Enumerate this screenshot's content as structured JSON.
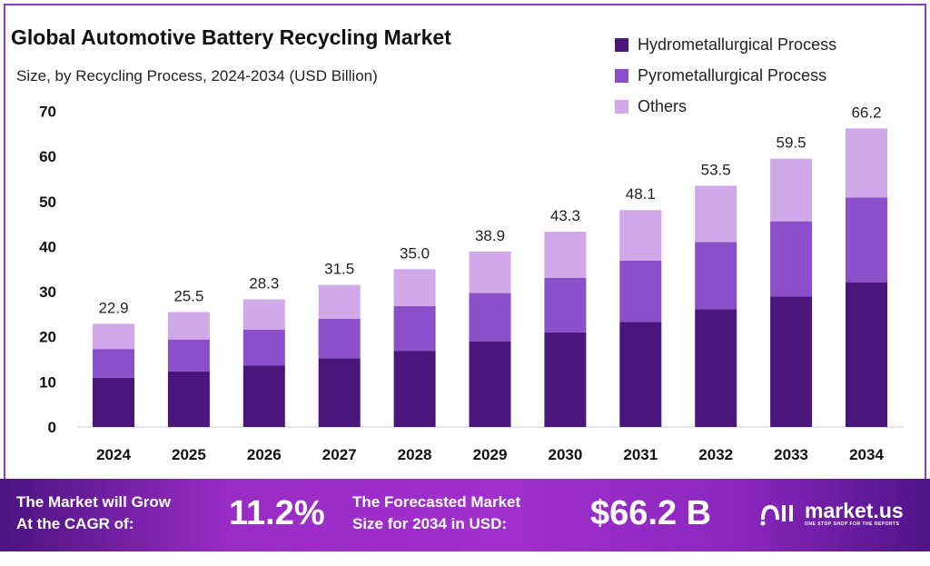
{
  "chart_data": {
    "type": "bar",
    "stacked": true,
    "title": "Global Automotive Battery Recycling Market",
    "subtitle": "Size, by Recycling Process, 2024-2034 (USD Billion)",
    "categories": [
      "2024",
      "2025",
      "2026",
      "2027",
      "2028",
      "2029",
      "2030",
      "2031",
      "2032",
      "2033",
      "2034"
    ],
    "series": [
      {
        "name": "Hydrometallurgical Process",
        "color": "#4b167b",
        "values": [
          10.9,
          12.3,
          13.6,
          15.2,
          16.9,
          19.0,
          21.0,
          23.3,
          26.1,
          28.9,
          32.1
        ]
      },
      {
        "name": "Pyrometallurgical Process",
        "color": "#8b4fc9",
        "values": [
          6.4,
          7.1,
          8.0,
          8.8,
          9.9,
          10.7,
          12.1,
          13.6,
          14.9,
          16.7,
          18.8
        ]
      },
      {
        "name": "Others",
        "color": "#d1a8e8",
        "values": [
          5.6,
          6.1,
          6.7,
          7.5,
          8.2,
          9.2,
          10.2,
          11.2,
          12.5,
          13.9,
          15.3
        ]
      }
    ],
    "totals": [
      "22.9",
      "25.5",
      "28.3",
      "31.5",
      "35.0",
      "38.9",
      "43.3",
      "48.1",
      "53.5",
      "59.5",
      "66.2"
    ],
    "yticks": [
      "0",
      "10",
      "20",
      "30",
      "40",
      "50",
      "60",
      "70"
    ],
    "ylim": [
      0,
      70
    ],
    "grid": false,
    "legend": "top-right"
  },
  "banner": {
    "cagr_label_1": "The Market will Grow",
    "cagr_label_2": "At the CAGR of:",
    "cagr_value": "11.2%",
    "forecast_label_1": "The Forecasted Market",
    "forecast_label_2": "Size for 2034 in USD:",
    "forecast_value": "$66.2 B",
    "logo_name": "market.us",
    "logo_tagline": "ONE STOP SHOP FOR THE REPORTS"
  }
}
